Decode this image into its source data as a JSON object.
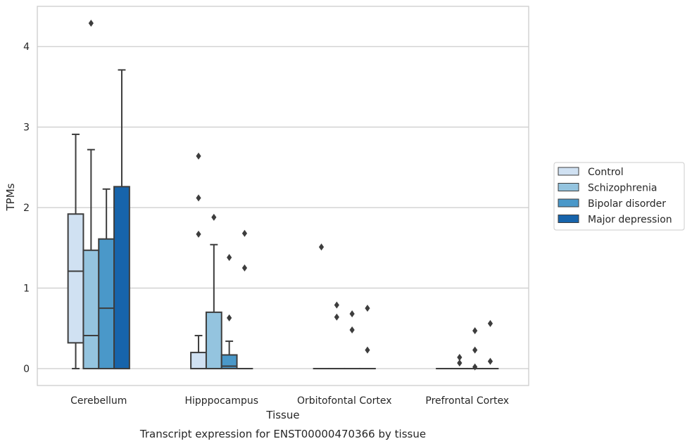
{
  "chart_data": {
    "type": "box",
    "title": "Transcript expression for ENST00000470366 by tissue",
    "xlabel": "Tissue",
    "ylabel": "TPMs",
    "ylim": [
      -0.21,
      4.5
    ],
    "yticks": [
      0,
      1,
      2,
      3,
      4
    ],
    "grid": "horizontal",
    "legend_position": "right",
    "categories": [
      "Cerebellum",
      "Hipppocampus",
      "Orbitofontal Cortex",
      "Prefrontal Cortex"
    ],
    "series": [
      {
        "name": "Control",
        "color": "#d0e1f2",
        "boxes": [
          {
            "whislo": 0.0,
            "q1": 0.32,
            "med": 1.21,
            "q3": 1.92,
            "whishi": 2.91,
            "fliers": []
          },
          {
            "whislo": 0.0,
            "q1": 0.0,
            "med": 0.0,
            "q3": 0.2,
            "whishi": 0.41,
            "fliers": [
              2.64,
              2.12,
              1.67
            ]
          },
          {
            "whislo": 0.0,
            "q1": 0.0,
            "med": 0.0,
            "q3": 0.0,
            "whishi": 0.0,
            "fliers": [
              1.51
            ]
          },
          {
            "whislo": 0.0,
            "q1": 0.0,
            "med": 0.0,
            "q3": 0.0,
            "whishi": 0.0,
            "fliers": []
          }
        ]
      },
      {
        "name": "Schizophrenia",
        "color": "#94c4df",
        "boxes": [
          {
            "whislo": 0.0,
            "q1": 0.0,
            "med": 0.41,
            "q3": 1.47,
            "whishi": 2.72,
            "fliers": [
              4.29
            ]
          },
          {
            "whislo": 0.0,
            "q1": 0.0,
            "med": 0.0,
            "q3": 0.7,
            "whishi": 1.54,
            "fliers": [
              1.88
            ]
          },
          {
            "whislo": 0.0,
            "q1": 0.0,
            "med": 0.0,
            "q3": 0.0,
            "whishi": 0.0,
            "fliers": [
              0.79,
              0.64
            ]
          },
          {
            "whislo": 0.0,
            "q1": 0.0,
            "med": 0.0,
            "q3": 0.0,
            "whishi": 0.0,
            "fliers": [
              0.14,
              0.07
            ]
          }
        ]
      },
      {
        "name": "Bipolar disorder",
        "color": "#4a98c9",
        "boxes": [
          {
            "whislo": 0.0,
            "q1": 0.0,
            "med": 0.75,
            "q3": 1.61,
            "whishi": 2.23,
            "fliers": []
          },
          {
            "whislo": 0.0,
            "q1": 0.0,
            "med": 0.03,
            "q3": 0.17,
            "whishi": 0.34,
            "fliers": [
              1.38,
              0.63
            ]
          },
          {
            "whislo": 0.0,
            "q1": 0.0,
            "med": 0.0,
            "q3": 0.0,
            "whishi": 0.0,
            "fliers": [
              0.68,
              0.48
            ]
          },
          {
            "whislo": 0.0,
            "q1": 0.0,
            "med": 0.0,
            "q3": 0.0,
            "whishi": 0.0,
            "fliers": [
              0.47,
              0.23,
              0.02
            ]
          }
        ]
      },
      {
        "name": "Major depression",
        "color": "#1764ab",
        "boxes": [
          {
            "whislo": 0.0,
            "q1": 0.0,
            "med": 0.0,
            "q3": 2.26,
            "whishi": 3.71,
            "fliers": []
          },
          {
            "whislo": 0.0,
            "q1": 0.0,
            "med": 0.0,
            "q3": 0.0,
            "whishi": 0.0,
            "fliers": [
              1.68,
              1.25
            ]
          },
          {
            "whislo": 0.0,
            "q1": 0.0,
            "med": 0.0,
            "q3": 0.0,
            "whishi": 0.0,
            "fliers": [
              0.75,
              0.23
            ]
          },
          {
            "whislo": 0.0,
            "q1": 0.0,
            "med": 0.0,
            "q3": 0.0,
            "whishi": 0.0,
            "fliers": [
              0.56,
              0.09
            ]
          }
        ]
      }
    ]
  }
}
